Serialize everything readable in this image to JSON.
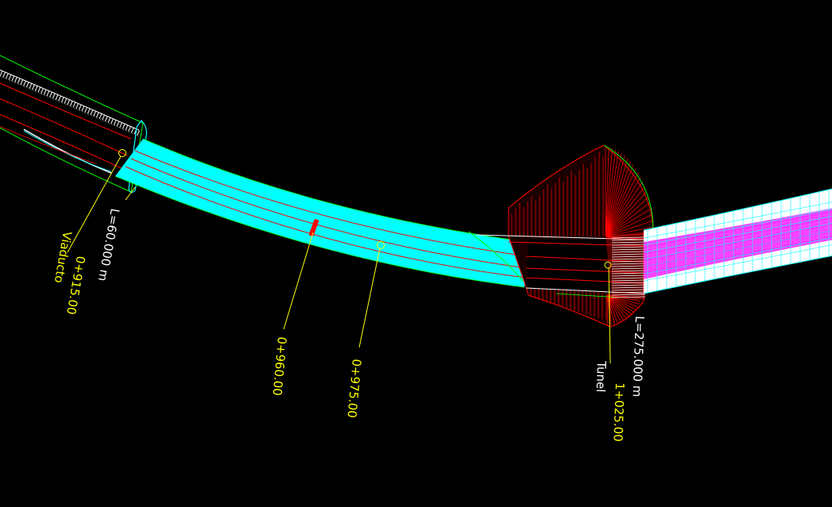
{
  "drawing": {
    "background": "#000000",
    "colors": {
      "road_fill": "#00ffff",
      "alignment": "#ff0000",
      "edge": "#00ff00",
      "annotation": "#ffff00",
      "label_white": "#ffffff",
      "tunnel_hatch": "#ff0000",
      "tunnel_road": "#ff00ff",
      "marker": "#ff0000"
    },
    "structures": [
      {
        "name": "Viaducto",
        "length_label": "L=60.000 m"
      },
      {
        "name": "Tunel",
        "length_label": "L=275.000 m"
      }
    ],
    "stations": [
      {
        "label": "0+915.00",
        "structure": "Viaducto"
      },
      {
        "label": "0+960.00"
      },
      {
        "label": "0+975.00"
      },
      {
        "label": "1+025.00",
        "structure": "Tunel"
      }
    ]
  }
}
